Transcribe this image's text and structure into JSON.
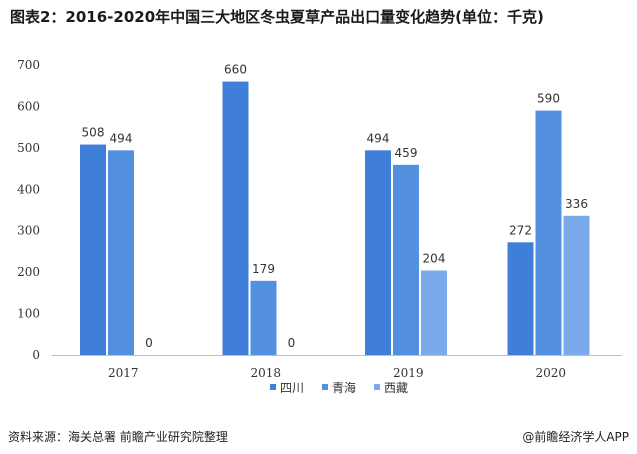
{
  "title": "图表2：2016-2020年中国三大地区冬虫夏草产品出口量变化趋势(单位：千克)",
  "source": "资料来源：海关总署 前瞻产业研究院整理",
  "app_credit": "@前瞻经济学人APP",
  "colors": {
    "四川": "#3f7fd9",
    "青海": "#5391e0",
    "西藏": "#7baaea",
    "axis": "#bfbfbf",
    "text": "#333333"
  },
  "chart_data": {
    "type": "bar",
    "categories": [
      "2017",
      "2018",
      "2019",
      "2020"
    ],
    "series": [
      {
        "name": "四川",
        "values": [
          508,
          660,
          494,
          272
        ]
      },
      {
        "name": "青海",
        "values": [
          494,
          179,
          459,
          590
        ]
      },
      {
        "name": "西藏",
        "values": [
          0,
          0,
          204,
          336
        ]
      }
    ],
    "ylim": [
      0,
      700
    ],
    "yticks": [
      0,
      100,
      200,
      300,
      400,
      500,
      600,
      700
    ],
    "grid": false,
    "legend_position": "bottom-right"
  }
}
